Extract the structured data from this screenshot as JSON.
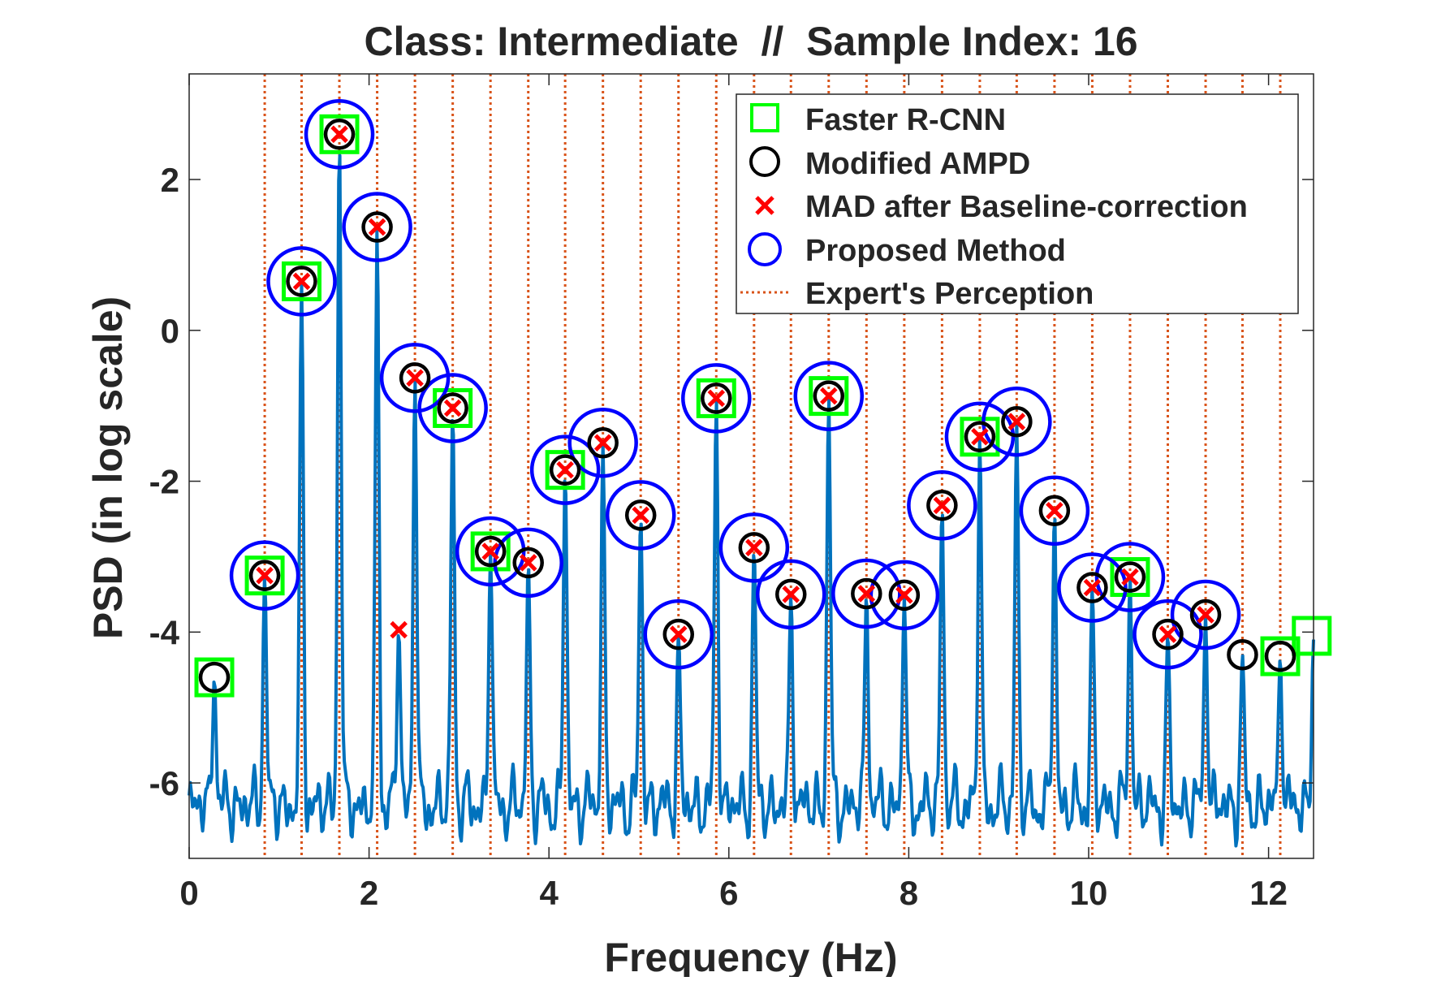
{
  "chart_data": {
    "type": "line",
    "title": "Class: Intermediate  //  Sample Index: 16",
    "xlabel": "Frequency (Hz)",
    "ylabel": "PSD (in log scale)",
    "xlim": [
      0,
      12.5
    ],
    "ylim": [
      -7,
      3.4
    ],
    "xticks": [
      0,
      2,
      4,
      6,
      8,
      10,
      12
    ],
    "yticks": [
      -6,
      -4,
      -2,
      0,
      2
    ],
    "grid": false,
    "legend_position": "top-right",
    "colors": {
      "psd_line": "#0072BD",
      "expert_lines": "#D95319",
      "faster_rcnn": "#00FF00",
      "modified_ampd": "#000000",
      "mad": "#FF0000",
      "proposed": "#0000FF"
    },
    "legend": [
      {
        "key": "faster_rcnn",
        "label": "Faster R-CNN",
        "marker": "square"
      },
      {
        "key": "modified_ampd",
        "label": "Modified AMPD",
        "marker": "circle"
      },
      {
        "key": "mad",
        "label": "MAD after Baseline-correction",
        "marker": "x"
      },
      {
        "key": "proposed",
        "label": "Proposed Method",
        "marker": "big-circle"
      },
      {
        "key": "expert",
        "label": "Expert's Perception",
        "marker": "dotted-line"
      }
    ],
    "peaks": [
      {
        "x": 0.28,
        "y": -4.6
      },
      {
        "x": 0.84,
        "y": -3.25
      },
      {
        "x": 1.25,
        "y": 0.65
      },
      {
        "x": 1.67,
        "y": 2.6
      },
      {
        "x": 2.09,
        "y": 1.37
      },
      {
        "x": 2.33,
        "y": -3.97
      },
      {
        "x": 2.51,
        "y": -0.63
      },
      {
        "x": 2.93,
        "y": -1.03
      },
      {
        "x": 3.35,
        "y": -2.93
      },
      {
        "x": 3.77,
        "y": -3.08
      },
      {
        "x": 4.18,
        "y": -1.85
      },
      {
        "x": 4.6,
        "y": -1.49
      },
      {
        "x": 5.02,
        "y": -2.45
      },
      {
        "x": 5.44,
        "y": -4.03
      },
      {
        "x": 5.86,
        "y": -0.9
      },
      {
        "x": 6.28,
        "y": -2.88
      },
      {
        "x": 6.69,
        "y": -3.5
      },
      {
        "x": 7.11,
        "y": -0.87
      },
      {
        "x": 7.53,
        "y": -3.49
      },
      {
        "x": 7.95,
        "y": -3.51
      },
      {
        "x": 8.37,
        "y": -2.32
      },
      {
        "x": 8.79,
        "y": -1.41
      },
      {
        "x": 9.2,
        "y": -1.21
      },
      {
        "x": 9.62,
        "y": -2.39
      },
      {
        "x": 10.04,
        "y": -3.41
      },
      {
        "x": 10.46,
        "y": -3.27
      },
      {
        "x": 10.88,
        "y": -4.03
      },
      {
        "x": 11.3,
        "y": -3.77
      },
      {
        "x": 11.71,
        "y": -4.3
      },
      {
        "x": 12.13,
        "y": -4.32
      },
      {
        "x": 12.5,
        "y": -4.1
      }
    ],
    "expert_perception_x": [
      0.84,
      1.25,
      1.67,
      2.09,
      2.51,
      2.93,
      3.35,
      3.77,
      4.18,
      4.6,
      5.02,
      5.44,
      5.86,
      6.28,
      6.69,
      7.11,
      7.53,
      7.95,
      8.37,
      8.79,
      9.2,
      9.62,
      10.04,
      10.46,
      10.88,
      11.3,
      11.71,
      12.13
    ],
    "faster_rcnn": [
      {
        "x": 0.28,
        "y": -4.6
      },
      {
        "x": 0.84,
        "y": -3.25
      },
      {
        "x": 1.25,
        "y": 0.65
      },
      {
        "x": 1.67,
        "y": 2.6
      },
      {
        "x": 2.93,
        "y": -1.03
      },
      {
        "x": 3.35,
        "y": -2.93
      },
      {
        "x": 4.18,
        "y": -1.85
      },
      {
        "x": 5.86,
        "y": -0.9
      },
      {
        "x": 7.11,
        "y": -0.87
      },
      {
        "x": 8.79,
        "y": -1.41
      },
      {
        "x": 10.46,
        "y": -3.27
      },
      {
        "x": 12.13,
        "y": -4.32
      },
      {
        "x": 12.48,
        "y": -4.05
      }
    ],
    "modified_ampd": [
      {
        "x": 0.28,
        "y": -4.6
      },
      {
        "x": 0.84,
        "y": -3.25
      },
      {
        "x": 1.25,
        "y": 0.65
      },
      {
        "x": 1.67,
        "y": 2.6
      },
      {
        "x": 2.09,
        "y": 1.37
      },
      {
        "x": 2.51,
        "y": -0.63
      },
      {
        "x": 2.93,
        "y": -1.03
      },
      {
        "x": 3.35,
        "y": -2.93
      },
      {
        "x": 3.77,
        "y": -3.08
      },
      {
        "x": 4.18,
        "y": -1.85
      },
      {
        "x": 4.6,
        "y": -1.49
      },
      {
        "x": 5.02,
        "y": -2.45
      },
      {
        "x": 5.44,
        "y": -4.03
      },
      {
        "x": 5.86,
        "y": -0.9
      },
      {
        "x": 6.28,
        "y": -2.88
      },
      {
        "x": 6.69,
        "y": -3.5
      },
      {
        "x": 7.11,
        "y": -0.87
      },
      {
        "x": 7.53,
        "y": -3.49
      },
      {
        "x": 7.95,
        "y": -3.51
      },
      {
        "x": 8.37,
        "y": -2.32
      },
      {
        "x": 8.79,
        "y": -1.41
      },
      {
        "x": 9.2,
        "y": -1.21
      },
      {
        "x": 9.62,
        "y": -2.39
      },
      {
        "x": 10.04,
        "y": -3.41
      },
      {
        "x": 10.46,
        "y": -3.27
      },
      {
        "x": 10.88,
        "y": -4.03
      },
      {
        "x": 11.3,
        "y": -3.77
      },
      {
        "x": 11.71,
        "y": -4.3
      },
      {
        "x": 12.13,
        "y": -4.32
      }
    ],
    "mad_after_baseline": [
      {
        "x": 0.84,
        "y": -3.25
      },
      {
        "x": 1.25,
        "y": 0.65
      },
      {
        "x": 1.67,
        "y": 2.6
      },
      {
        "x": 2.09,
        "y": 1.37
      },
      {
        "x": 2.33,
        "y": -3.97
      },
      {
        "x": 2.51,
        "y": -0.63
      },
      {
        "x": 2.93,
        "y": -1.03
      },
      {
        "x": 3.35,
        "y": -2.93
      },
      {
        "x": 3.77,
        "y": -3.08
      },
      {
        "x": 4.18,
        "y": -1.85
      },
      {
        "x": 4.6,
        "y": -1.49
      },
      {
        "x": 5.02,
        "y": -2.45
      },
      {
        "x": 5.44,
        "y": -4.03
      },
      {
        "x": 5.86,
        "y": -0.9
      },
      {
        "x": 6.28,
        "y": -2.88
      },
      {
        "x": 6.69,
        "y": -3.5
      },
      {
        "x": 7.11,
        "y": -0.87
      },
      {
        "x": 7.53,
        "y": -3.49
      },
      {
        "x": 7.95,
        "y": -3.51
      },
      {
        "x": 8.37,
        "y": -2.32
      },
      {
        "x": 8.79,
        "y": -1.41
      },
      {
        "x": 9.2,
        "y": -1.21
      },
      {
        "x": 9.62,
        "y": -2.39
      },
      {
        "x": 10.04,
        "y": -3.41
      },
      {
        "x": 10.46,
        "y": -3.27
      },
      {
        "x": 10.88,
        "y": -4.03
      },
      {
        "x": 11.3,
        "y": -3.77
      }
    ],
    "proposed_method": [
      {
        "x": 0.84,
        "y": -3.25
      },
      {
        "x": 1.25,
        "y": 0.65
      },
      {
        "x": 1.67,
        "y": 2.6
      },
      {
        "x": 2.09,
        "y": 1.37
      },
      {
        "x": 2.51,
        "y": -0.63
      },
      {
        "x": 2.93,
        "y": -1.03
      },
      {
        "x": 3.35,
        "y": -2.93
      },
      {
        "x": 3.77,
        "y": -3.08
      },
      {
        "x": 4.18,
        "y": -1.85
      },
      {
        "x": 4.6,
        "y": -1.49
      },
      {
        "x": 5.02,
        "y": -2.45
      },
      {
        "x": 5.44,
        "y": -4.03
      },
      {
        "x": 5.86,
        "y": -0.9
      },
      {
        "x": 6.28,
        "y": -2.88
      },
      {
        "x": 6.69,
        "y": -3.5
      },
      {
        "x": 7.11,
        "y": -0.87
      },
      {
        "x": 7.53,
        "y": -3.49
      },
      {
        "x": 7.95,
        "y": -3.51
      },
      {
        "x": 8.37,
        "y": -2.32
      },
      {
        "x": 8.79,
        "y": -1.41
      },
      {
        "x": 9.2,
        "y": -1.21
      },
      {
        "x": 9.62,
        "y": -2.39
      },
      {
        "x": 10.04,
        "y": -3.41
      },
      {
        "x": 10.46,
        "y": -3.27
      },
      {
        "x": 10.88,
        "y": -4.03
      },
      {
        "x": 11.3,
        "y": -3.77
      }
    ]
  }
}
